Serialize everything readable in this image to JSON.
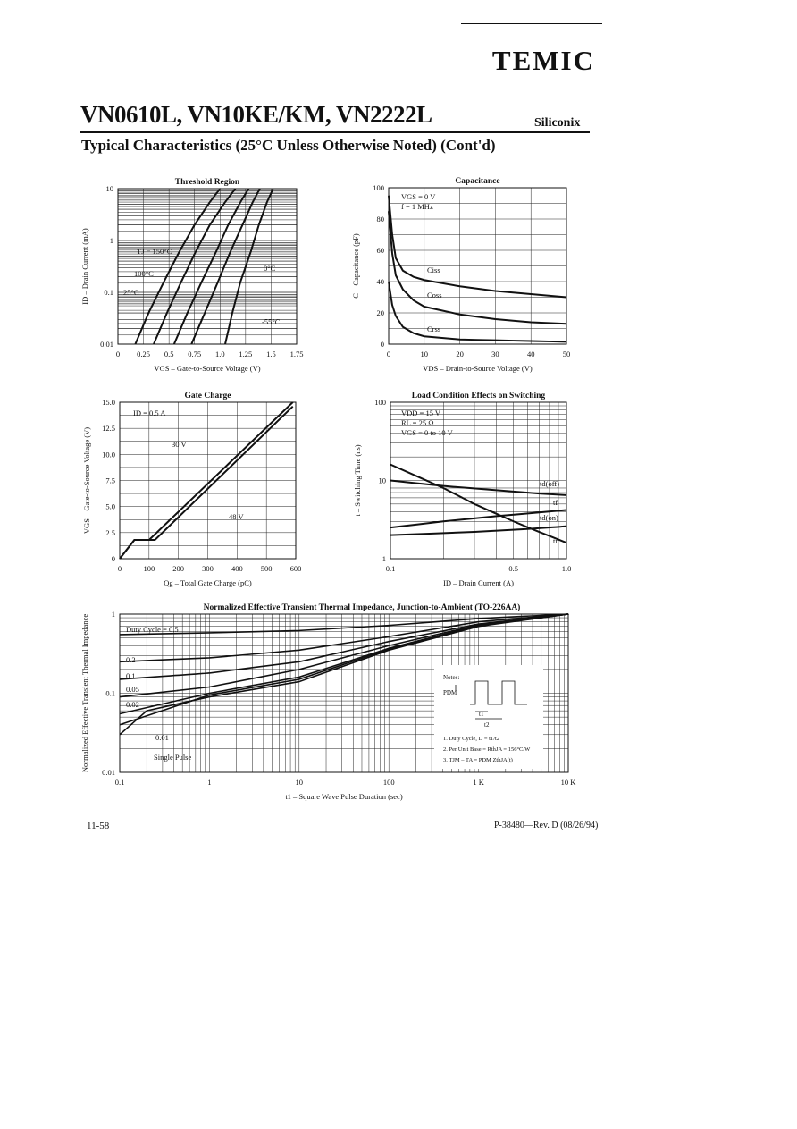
{
  "header": {
    "brand": "TEMIC",
    "part_numbers": "VN0610L, VN10KE/KM, VN2222L",
    "manufacturer": "Siliconix",
    "section_title": "Typical Characteristics (25°C Unless Otherwise Noted) (Cont'd)"
  },
  "footer": {
    "page_number": "11-58",
    "doc_ref": "P-38480—Rev. D (08/26/94)"
  },
  "chart_data": [
    {
      "type": "line",
      "title": "Threshold Region",
      "xlabel": "VGS – Gate-to-Source Voltage (V)",
      "ylabel": "ID – Drain Current (mA)",
      "xlim": [
        0,
        1.75
      ],
      "ylim": [
        0.01,
        10
      ],
      "yscale": "log",
      "x_ticks": [
        "0",
        "0.25",
        "0.5",
        "0.75",
        "1.0",
        "1.25",
        "1.5",
        "1.75"
      ],
      "y_ticks": [
        "0.01",
        "0.1",
        "1",
        "10"
      ],
      "grid": true,
      "series": [
        {
          "name": "TJ = 150°C",
          "points": [
            [
              0.17,
              0.01
            ],
            [
              0.3,
              0.04
            ],
            [
              0.45,
              0.16
            ],
            [
              0.6,
              0.6
            ],
            [
              0.75,
              2
            ],
            [
              0.9,
              5.5
            ],
            [
              1.0,
              10
            ]
          ]
        },
        {
          "name": "100°C",
          "points": [
            [
              0.35,
              0.01
            ],
            [
              0.48,
              0.04
            ],
            [
              0.62,
              0.16
            ],
            [
              0.76,
              0.6
            ],
            [
              0.9,
              2
            ],
            [
              1.05,
              5.5
            ],
            [
              1.15,
              10
            ]
          ]
        },
        {
          "name": "25°C",
          "points": [
            [
              0.55,
              0.01
            ],
            [
              0.68,
              0.04
            ],
            [
              0.82,
              0.16
            ],
            [
              0.96,
              0.6
            ],
            [
              1.08,
              2
            ],
            [
              1.2,
              5.5
            ],
            [
              1.28,
              10
            ]
          ]
        },
        {
          "name": "0°C",
          "points": [
            [
              0.72,
              0.01
            ],
            [
              0.85,
              0.04
            ],
            [
              0.98,
              0.16
            ],
            [
              1.1,
              0.6
            ],
            [
              1.22,
              2
            ],
            [
              1.32,
              5.5
            ],
            [
              1.39,
              10
            ]
          ]
        },
        {
          "name": "-55°C",
          "points": [
            [
              1.05,
              0.01
            ],
            [
              1.12,
              0.04
            ],
            [
              1.2,
              0.16
            ],
            [
              1.3,
              0.6
            ],
            [
              1.38,
              2
            ],
            [
              1.46,
              5.5
            ],
            [
              1.52,
              10
            ]
          ]
        }
      ]
    },
    {
      "type": "line",
      "title": "Capacitance",
      "xlabel": "VDS – Drain-to-Source Voltage (V)",
      "ylabel": "C – Capacitance (pF)",
      "xlim": [
        0,
        50
      ],
      "ylim": [
        0,
        100
      ],
      "x_ticks": [
        "0",
        "10",
        "20",
        "30",
        "40",
        "50"
      ],
      "y_ticks": [
        "0",
        "20",
        "40",
        "60",
        "80",
        "100"
      ],
      "conditions": [
        "VGS = 0 V",
        "f = 1 MHz"
      ],
      "grid": true,
      "series": [
        {
          "name": "Ciss",
          "points": [
            [
              0,
              95
            ],
            [
              1,
              70
            ],
            [
              2,
              55
            ],
            [
              4,
              47
            ],
            [
              7,
              43
            ],
            [
              10,
              41
            ],
            [
              20,
              37
            ],
            [
              30,
              34
            ],
            [
              40,
              32
            ],
            [
              50,
              30
            ]
          ]
        },
        {
          "name": "Coss",
          "points": [
            [
              0,
              85
            ],
            [
              1,
              58
            ],
            [
              2,
              44
            ],
            [
              4,
              35
            ],
            [
              7,
              28
            ],
            [
              10,
              24
            ],
            [
              20,
              19
            ],
            [
              30,
              16
            ],
            [
              40,
              14
            ],
            [
              50,
              13
            ]
          ]
        },
        {
          "name": "Crss",
          "points": [
            [
              0,
              40
            ],
            [
              1,
              25
            ],
            [
              2,
              18
            ],
            [
              4,
              11
            ],
            [
              7,
              7
            ],
            [
              10,
              5
            ],
            [
              20,
              3
            ],
            [
              30,
              2.5
            ],
            [
              40,
              2
            ],
            [
              50,
              1.5
            ]
          ]
        }
      ]
    },
    {
      "type": "line",
      "title": "Gate Charge",
      "xlabel": "Qg – Total Gate Charge (pC)",
      "ylabel": "VGS – Gate-to-Source Voltage (V)",
      "xlim": [
        0,
        600
      ],
      "ylim": [
        0,
        15
      ],
      "x_ticks": [
        "0",
        "100",
        "200",
        "300",
        "400",
        "500",
        "600"
      ],
      "y_ticks": [
        "0",
        "2.5",
        "5.0",
        "7.5",
        "10.0",
        "12.5",
        "15.0"
      ],
      "conditions": [
        "ID = 0.5 A"
      ],
      "grid": true,
      "series": [
        {
          "name": "30 V",
          "points": [
            [
              0,
              0
            ],
            [
              50,
              1.8
            ],
            [
              100,
              1.8
            ],
            [
              590,
              15
            ]
          ]
        },
        {
          "name": "48 V",
          "points": [
            [
              0,
              0
            ],
            [
              50,
              1.8
            ],
            [
              120,
              1.8
            ],
            [
              590,
              14.6
            ]
          ]
        }
      ]
    },
    {
      "type": "line",
      "title": "Load Condition Effects on Switching",
      "xlabel": "ID – Drain Current (A)",
      "ylabel": "t – Switching Time (ns)",
      "xlim": [
        0.1,
        1.0
      ],
      "ylim": [
        1,
        100
      ],
      "xscale": "log",
      "yscale": "log",
      "x_ticks": [
        "0.1",
        "0.5",
        "1.0"
      ],
      "y_ticks": [
        "1",
        "10",
        "100"
      ],
      "conditions": [
        "VDD = 15 V",
        "RL = 25 Ω",
        "VGS = 0 to 10 V"
      ],
      "grid": true,
      "series": [
        {
          "name": "td(off)",
          "points": [
            [
              0.1,
              10
            ],
            [
              0.2,
              8.5
            ],
            [
              0.4,
              7.5
            ],
            [
              0.7,
              6.8
            ],
            [
              1.0,
              6.5
            ]
          ]
        },
        {
          "name": "tf",
          "points": [
            [
              0.1,
              16
            ],
            [
              0.2,
              8
            ],
            [
              0.3,
              5
            ],
            [
              0.5,
              3
            ],
            [
              0.7,
              2.2
            ],
            [
              1.0,
              1.6
            ]
          ]
        },
        {
          "name": "td(on)",
          "points": [
            [
              0.1,
              2.5
            ],
            [
              0.2,
              3
            ],
            [
              0.4,
              3.5
            ],
            [
              0.7,
              3.9
            ],
            [
              1.0,
              4.2
            ]
          ]
        },
        {
          "name": "tr",
          "points": [
            [
              0.1,
              2
            ],
            [
              0.3,
              2.2
            ],
            [
              0.6,
              2.4
            ],
            [
              1.0,
              2.6
            ]
          ]
        }
      ]
    },
    {
      "type": "line",
      "title": "Normalized Effective Transient Thermal Impedance, Junction-to-Ambient (TO-226AA)",
      "xlabel": "t1 – Square Wave Pulse Duration (sec)",
      "ylabel": "Normalized Effective Transient Thermal Impedance",
      "xlim": [
        0.1,
        10000
      ],
      "ylim": [
        0.01,
        1
      ],
      "xscale": "log",
      "yscale": "log",
      "x_ticks": [
        "0.1",
        "1",
        "10",
        "100",
        "1 K",
        "10 K"
      ],
      "y_ticks": [
        "0.01",
        "0.1",
        "1"
      ],
      "grid": true,
      "legend_notes": [
        "Notes:",
        "PDM",
        "t1",
        "t2",
        "1. Duty Cycle, D = t1/t2",
        "2. Per Unit Base = RthJA = 156°C/W",
        "3. TJM – TA = PDM ZthJA(t)"
      ],
      "series": [
        {
          "name": "Duty Cycle = 0.5",
          "points": [
            [
              0.1,
              0.55
            ],
            [
              1,
              0.58
            ],
            [
              10,
              0.62
            ],
            [
              100,
              0.72
            ],
            [
              1000,
              0.88
            ],
            [
              10000,
              1
            ]
          ]
        },
        {
          "name": "0.2",
          "points": [
            [
              0.1,
              0.25
            ],
            [
              1,
              0.28
            ],
            [
              10,
              0.35
            ],
            [
              100,
              0.52
            ],
            [
              1000,
              0.8
            ],
            [
              10000,
              1
            ]
          ]
        },
        {
          "name": "0.1",
          "points": [
            [
              0.1,
              0.15
            ],
            [
              1,
              0.18
            ],
            [
              10,
              0.25
            ],
            [
              100,
              0.45
            ],
            [
              1000,
              0.75
            ],
            [
              10000,
              1
            ]
          ]
        },
        {
          "name": "0.05",
          "points": [
            [
              0.1,
              0.09
            ],
            [
              1,
              0.12
            ],
            [
              10,
              0.2
            ],
            [
              100,
              0.4
            ],
            [
              1000,
              0.73
            ],
            [
              10000,
              1
            ]
          ]
        },
        {
          "name": "0.02",
          "points": [
            [
              0.1,
              0.055
            ],
            [
              1,
              0.1
            ],
            [
              10,
              0.16
            ],
            [
              100,
              0.37
            ],
            [
              1000,
              0.72
            ],
            [
              10000,
              1
            ]
          ]
        },
        {
          "name": "0.01",
          "points": [
            [
              0.1,
              0.04
            ],
            [
              1,
              0.095
            ],
            [
              10,
              0.15
            ],
            [
              100,
              0.36
            ],
            [
              1000,
              0.71
            ],
            [
              10000,
              1
            ]
          ]
        },
        {
          "name": "Single Pulse",
          "points": [
            [
              0.1,
              0.03
            ],
            [
              0.2,
              0.06
            ],
            [
              1,
              0.09
            ],
            [
              10,
              0.14
            ],
            [
              100,
              0.35
            ],
            [
              1000,
              0.7
            ],
            [
              10000,
              1
            ]
          ]
        }
      ]
    }
  ]
}
